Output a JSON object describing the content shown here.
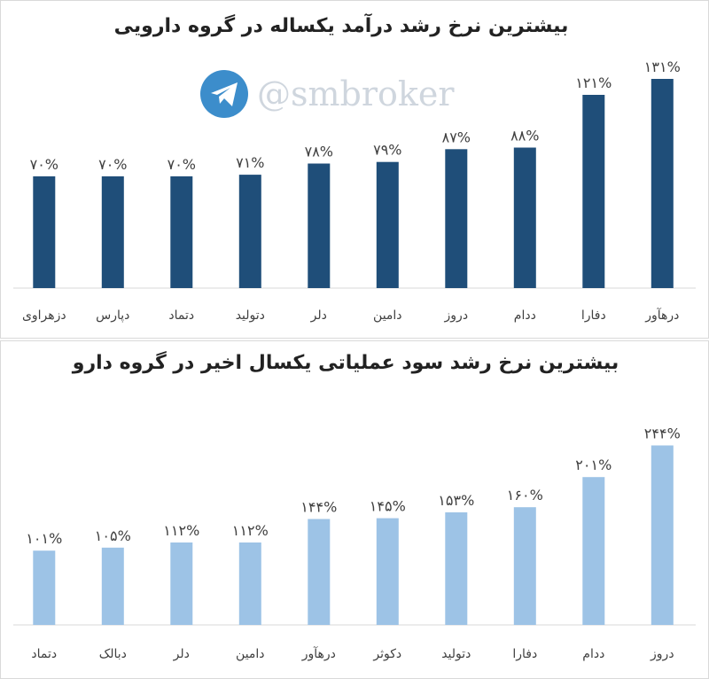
{
  "watermark": {
    "text": "@smbroker",
    "icon": "telegram-plane-icon",
    "icon_color": "#3c8dcb"
  },
  "chart_data": [
    {
      "type": "bar",
      "title": "بیشترین نرخ رشد درآمد یکساله در گروه دارویی",
      "categories": [
        "درهآور",
        "دفارا",
        "ددام",
        "دروز",
        "دامین",
        "دلر",
        "دتولید",
        "دتماد",
        "دپارس",
        "دزهراوی"
      ],
      "values": [
        131,
        121,
        88,
        87,
        79,
        78,
        71,
        70,
        70,
        70
      ],
      "value_labels": [
        "۱۳۱%",
        "۱۲۱%",
        "۸۸%",
        "۸۷%",
        "۷۹%",
        "۷۸%",
        "۷۱%",
        "۷۰%",
        "۷۰%",
        "۷۰%"
      ],
      "ylim": [
        0,
        136
      ],
      "grid": false,
      "direction": "right-to-left",
      "color": "#1f4e79"
    },
    {
      "type": "bar",
      "title": "بیشترین نرخ رشد سود عملیاتی یکسال اخیر در گروه دارو",
      "categories": [
        "دروز",
        "ددام",
        "دفارا",
        "دتولید",
        "دکوثر",
        "درهآور",
        "دامین",
        "دلر",
        "دبالک",
        "دتماد"
      ],
      "values": [
        244,
        201,
        160,
        153,
        145,
        144,
        112,
        112,
        105,
        101
      ],
      "value_labels": [
        "۲۴۴%",
        "۲۰۱%",
        "۱۶۰%",
        "۱۵۳%",
        "۱۴۵%",
        "۱۴۴%",
        "۱۱۲%",
        "۱۱۲%",
        "۱۰۵%",
        "۱۰۱%"
      ],
      "ylim": [
        0,
        253
      ],
      "grid": false,
      "direction": "right-to-left",
      "color": "#9dc3e6"
    }
  ]
}
